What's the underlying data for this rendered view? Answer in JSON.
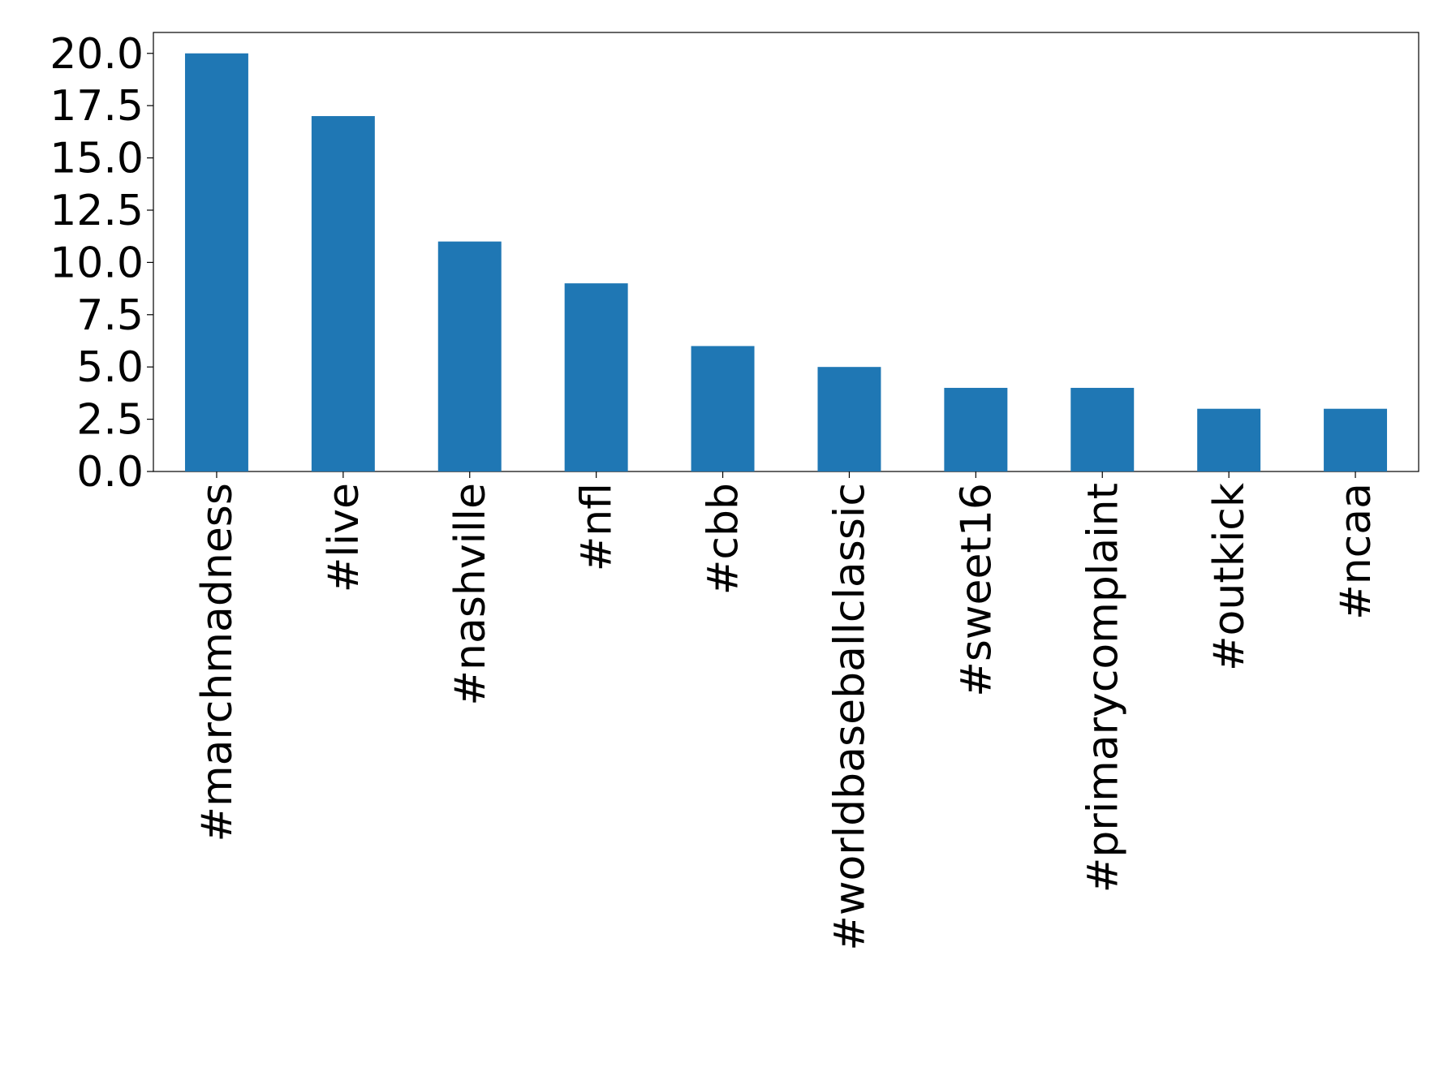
{
  "chart_data": {
    "type": "bar",
    "categories": [
      "#marchmadness",
      "#live",
      "#nashville",
      "#nfl",
      "#cbb",
      "#worldbaseballclassic",
      "#sweet16",
      "#primarycomplaint",
      "#outkick",
      "#ncaa"
    ],
    "values": [
      20,
      17,
      11,
      9,
      6,
      5,
      4,
      4,
      3,
      3
    ],
    "color": "#1f77b4",
    "ylim": [
      0,
      21
    ],
    "yticks": [
      {
        "value": 0,
        "label": "0.0"
      },
      2.5,
      {
        "value": 5,
        "label": "5.0"
      },
      7.5,
      {
        "value": 10,
        "label": "10.0"
      },
      12.5,
      {
        "value": 15,
        "label": "15.0"
      },
      17.5,
      {
        "value": 20,
        "label": "20.0"
      }
    ],
    "grid": false
  }
}
